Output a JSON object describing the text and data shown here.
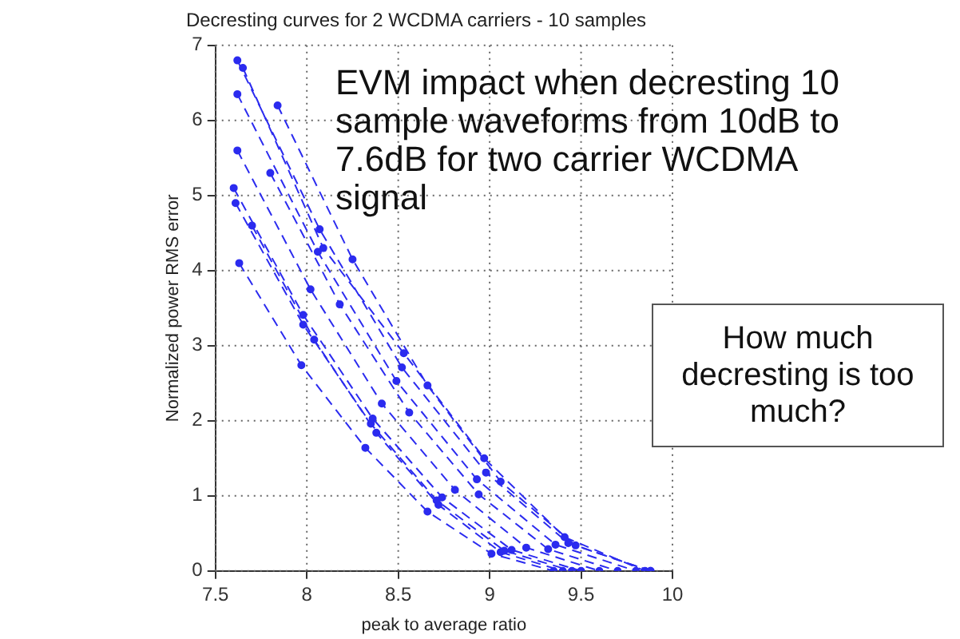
{
  "chart_data": {
    "type": "line",
    "title": "Decresting curves for 2 WCDMA carriers - 10 samples",
    "xlabel": "peak to average ratio",
    "ylabel": "Normalized power RMS error",
    "xlim": [
      7.5,
      10
    ],
    "xticks": [
      7.5,
      8,
      8.5,
      9,
      9.5,
      10
    ],
    "ylim": [
      0,
      7
    ],
    "yticks": [
      0,
      1,
      2,
      3,
      4,
      5,
      6,
      7
    ],
    "grid": true,
    "legend": false,
    "marker": "circle",
    "line_style": "dashed",
    "annotations": [
      "EVM impact when decresting 10 sample waveforms from 10dB to 7.6dB for two carrier WCDMA signal",
      "How much decresting is too much?"
    ],
    "series": [
      {
        "color": "#2b2bef",
        "x": [
          7.62,
          8.07,
          8.52,
          8.98,
          9.43,
          9.88
        ],
        "values": [
          6.8,
          4.55,
          2.71,
          1.31,
          0.37,
          0
        ]
      },
      {
        "color": "#2b2bef",
        "x": [
          7.65,
          8.09,
          8.53,
          8.97,
          9.41,
          9.85
        ],
        "values": [
          6.7,
          4.3,
          2.9,
          1.5,
          0.45,
          0
        ]
      },
      {
        "color": "#2b2bef",
        "x": [
          7.62,
          8.06,
          8.49,
          8.93,
          9.36,
          9.8
        ],
        "values": [
          6.35,
          4.25,
          2.53,
          1.22,
          0.35,
          0
        ]
      },
      {
        "color": "#2b2bef",
        "x": [
          7.84,
          8.25,
          8.66,
          9.06,
          9.47,
          9.88
        ],
        "values": [
          6.2,
          4.15,
          2.47,
          1.19,
          0.34,
          0
        ]
      },
      {
        "color": "#2b2bef",
        "x": [
          7.62,
          8.02,
          8.41,
          8.81,
          9.2,
          9.6
        ],
        "values": [
          5.6,
          3.75,
          2.23,
          1.08,
          0.31,
          0
        ]
      },
      {
        "color": "#2b2bef",
        "x": [
          7.6,
          7.98,
          8.36,
          8.74,
          9.12,
          9.5
        ],
        "values": [
          5.1,
          3.41,
          2.03,
          0.98,
          0.28,
          0
        ]
      },
      {
        "color": "#2b2bef",
        "x": [
          7.61,
          7.98,
          8.35,
          8.71,
          9.08,
          9.45
        ],
        "values": [
          4.9,
          3.28,
          1.96,
          0.94,
          0.27,
          0
        ]
      },
      {
        "color": "#2b2bef",
        "x": [
          7.63,
          7.97,
          8.32,
          8.66,
          9.01,
          9.35
        ],
        "values": [
          4.1,
          2.74,
          1.64,
          0.79,
          0.23,
          0
        ]
      },
      {
        "color": "#2b2bef",
        "x": [
          7.8,
          8.18,
          8.56,
          8.94,
          9.32,
          9.7
        ],
        "values": [
          5.3,
          3.55,
          2.11,
          1.02,
          0.29,
          0
        ]
      },
      {
        "color": "#2b2bef",
        "x": [
          7.7,
          8.04,
          8.38,
          8.72,
          9.06,
          9.4
        ],
        "values": [
          4.6,
          3.08,
          1.84,
          0.88,
          0.25,
          0
        ]
      }
    ]
  }
}
